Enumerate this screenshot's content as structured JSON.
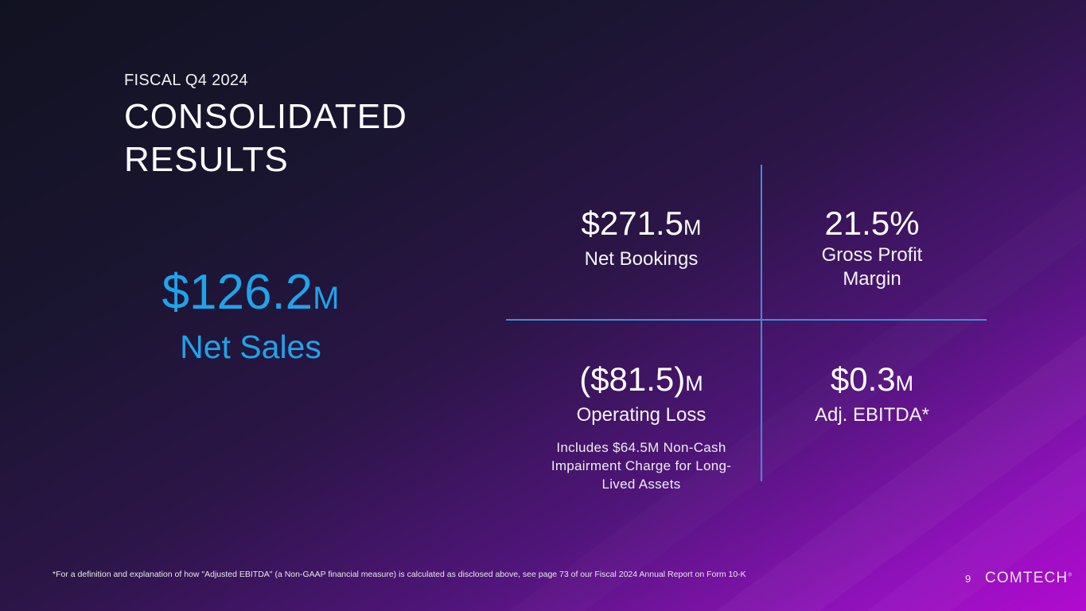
{
  "header": {
    "subtitle": "FISCAL Q4 2024",
    "title_line1": "CONSOLIDATED",
    "title_line2": "RESULTS"
  },
  "hero": {
    "value": "$126.2",
    "unit": "M",
    "label": "Net Sales",
    "color": "#1ea4ea"
  },
  "metrics": [
    {
      "value": "$271.5",
      "unit": "M",
      "label": "Net Bookings"
    },
    {
      "value": "21.5%",
      "unit": "",
      "label_line1": "Gross Profit",
      "label_line2": "Margin"
    },
    {
      "value": "($81.5)",
      "unit": "M",
      "label": "Operating Loss",
      "note_line1": "Includes $64.5M Non-Cash",
      "note_line2": "Impairment Charge for Long-",
      "note_line3": "Lived Assets"
    },
    {
      "value": "$0.3",
      "unit": "M",
      "label": "Adj. EBITDA*"
    }
  ],
  "footer": {
    "footnote": "*For a definition and explanation of how  \"Adjusted EBITDA\" (a Non-GAAP financial measure) is calculated as disclosed above, see page 73 of our Fiscal 2024 Annual Report on Form 10-K",
    "page_number": "9",
    "logo_text": "COMTECH",
    "logo_mark": "®"
  },
  "colors": {
    "divider": "#3d8fd6",
    "accent": "#1ea4ea"
  }
}
